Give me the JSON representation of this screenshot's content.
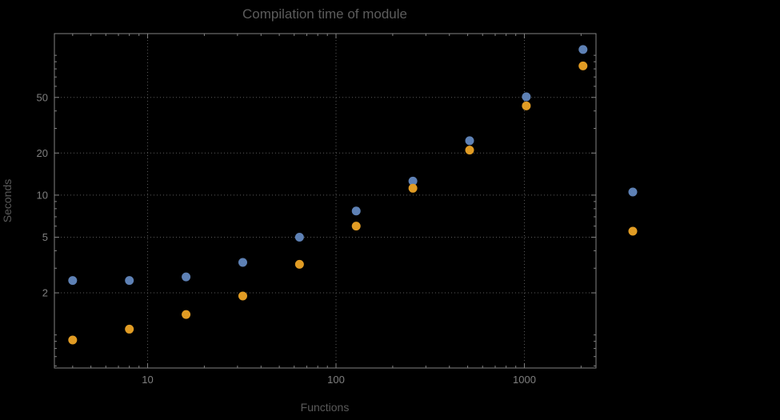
{
  "chart_data": {
    "type": "scatter",
    "title": "Compilation time of module",
    "xlabel": "Functions",
    "ylabel": "Seconds",
    "x_scale": "log",
    "y_scale": "log",
    "xlim": [
      3.2,
      2400
    ],
    "ylim": [
      0.58,
      143
    ],
    "x_ticks": [
      10,
      100,
      1000
    ],
    "y_ticks": [
      2,
      5,
      10,
      20,
      50
    ],
    "grid": true,
    "legend_position": "right",
    "x": [
      4,
      8,
      16,
      32,
      64,
      128,
      256,
      512,
      1024,
      2048
    ],
    "series": [
      {
        "name": "blue",
        "color": "#5E81B5",
        "values": [
          2.45,
          2.45,
          2.6,
          3.3,
          5.0,
          7.7,
          12.6,
          24.5,
          50.5,
          110
        ]
      },
      {
        "name": "orange",
        "color": "#E19C24",
        "values": [
          0.92,
          1.1,
          1.4,
          1.9,
          3.2,
          6.0,
          11.2,
          21,
          43.5,
          84
        ]
      }
    ]
  },
  "colors": {
    "background": "#000000",
    "frame": "#828282",
    "grid": "#5a5a5a",
    "title": "#5c5c5c",
    "axis_label": "#595959",
    "tick_label": "#7f7f7f"
  }
}
